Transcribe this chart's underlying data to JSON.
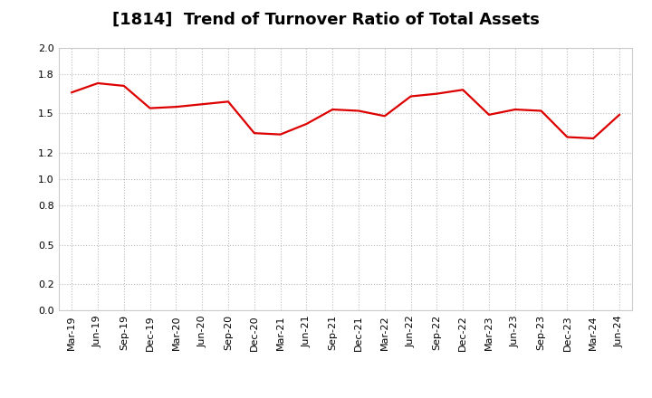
{
  "title": "[1814]  Trend of Turnover Ratio of Total Assets",
  "x_labels": [
    "Mar-19",
    "Jun-19",
    "Sep-19",
    "Dec-19",
    "Mar-20",
    "Jun-20",
    "Sep-20",
    "Dec-20",
    "Mar-21",
    "Jun-21",
    "Sep-21",
    "Dec-21",
    "Mar-22",
    "Jun-22",
    "Sep-22",
    "Dec-22",
    "Mar-23",
    "Jun-23",
    "Sep-23",
    "Dec-23",
    "Mar-24",
    "Jun-24"
  ],
  "values": [
    1.66,
    1.73,
    1.71,
    1.54,
    1.55,
    1.57,
    1.59,
    1.35,
    1.34,
    1.42,
    1.53,
    1.52,
    1.48,
    1.63,
    1.65,
    1.68,
    1.49,
    1.53,
    1.52,
    1.32,
    1.31,
    1.49
  ],
  "ylim": [
    0.0,
    2.0
  ],
  "yticks": [
    0.0,
    0.2,
    0.5,
    0.8,
    1.0,
    1.2,
    1.5,
    1.8,
    2.0
  ],
  "line_color": "#dd0000",
  "line_width": 1.6,
  "bg_color": "#ffffff",
  "plot_bg_color": "#ffffff",
  "grid_color": "#bbbbbb",
  "title_fontsize": 13,
  "tick_fontsize": 8
}
